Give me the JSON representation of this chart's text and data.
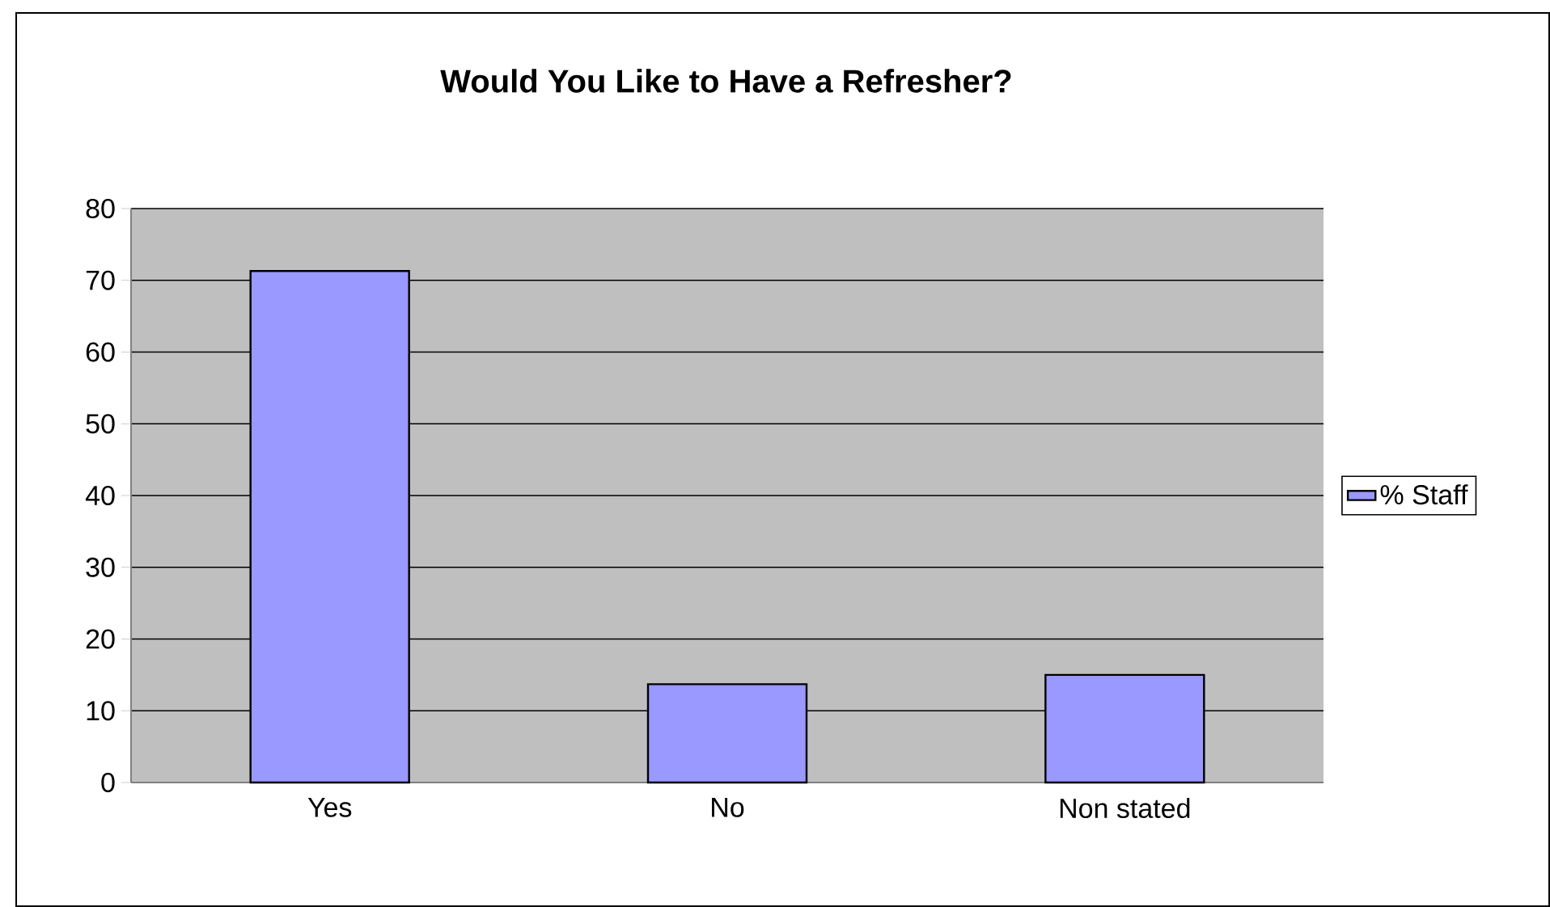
{
  "chart_data": {
    "type": "bar",
    "title": "Would You Like to Have a Refresher?",
    "categories": [
      "Yes",
      "No",
      "Non stated"
    ],
    "series": [
      {
        "name": "% Staff",
        "color": "#9999ff",
        "values": [
          71.3,
          13.7,
          15.0
        ]
      }
    ],
    "ylim": [
      0,
      80
    ],
    "yticks": [
      0,
      10,
      20,
      30,
      40,
      50,
      60,
      70,
      80
    ],
    "grid": "y",
    "legend": "right"
  }
}
